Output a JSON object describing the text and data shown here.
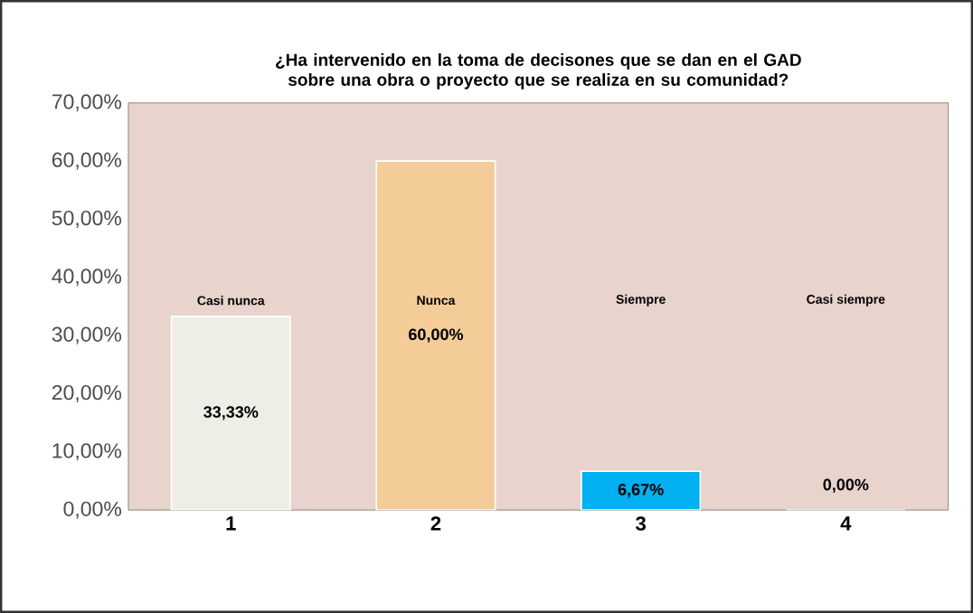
{
  "chart_data": {
    "type": "bar",
    "title": "¿Ha intervenido en la toma de decisones que se dan en el GAD sobre una obra o proyecto que se realiza en su comunidad?",
    "categories": [
      "1",
      "2",
      "3",
      "4"
    ],
    "values": [
      33.33,
      60,
      6.67,
      0
    ],
    "colors": [
      "#efeee6",
      "#f4cc98",
      "#00b0f0",
      "#f4cc98"
    ],
    "value_labels": [
      "33,33%",
      "60,00%",
      "6,67%",
      "0,00%"
    ],
    "annotations": [
      "Casi nunca",
      "Nunca",
      "Siempre",
      "Casi siempre"
    ],
    "ylim": [
      0,
      70
    ],
    "yticks": [
      {
        "value": 0,
        "label": "0,00%"
      },
      {
        "value": 10,
        "label": "10,00%"
      },
      {
        "value": 20,
        "label": "20,00%"
      },
      {
        "value": 30,
        "label": "30,00%"
      },
      {
        "value": 40,
        "label": "40,00%"
      },
      {
        "value": 50,
        "label": "50,00%"
      },
      {
        "value": 60,
        "label": "60,00%"
      },
      {
        "value": 70,
        "label": "70,00%"
      }
    ],
    "grid": false
  }
}
